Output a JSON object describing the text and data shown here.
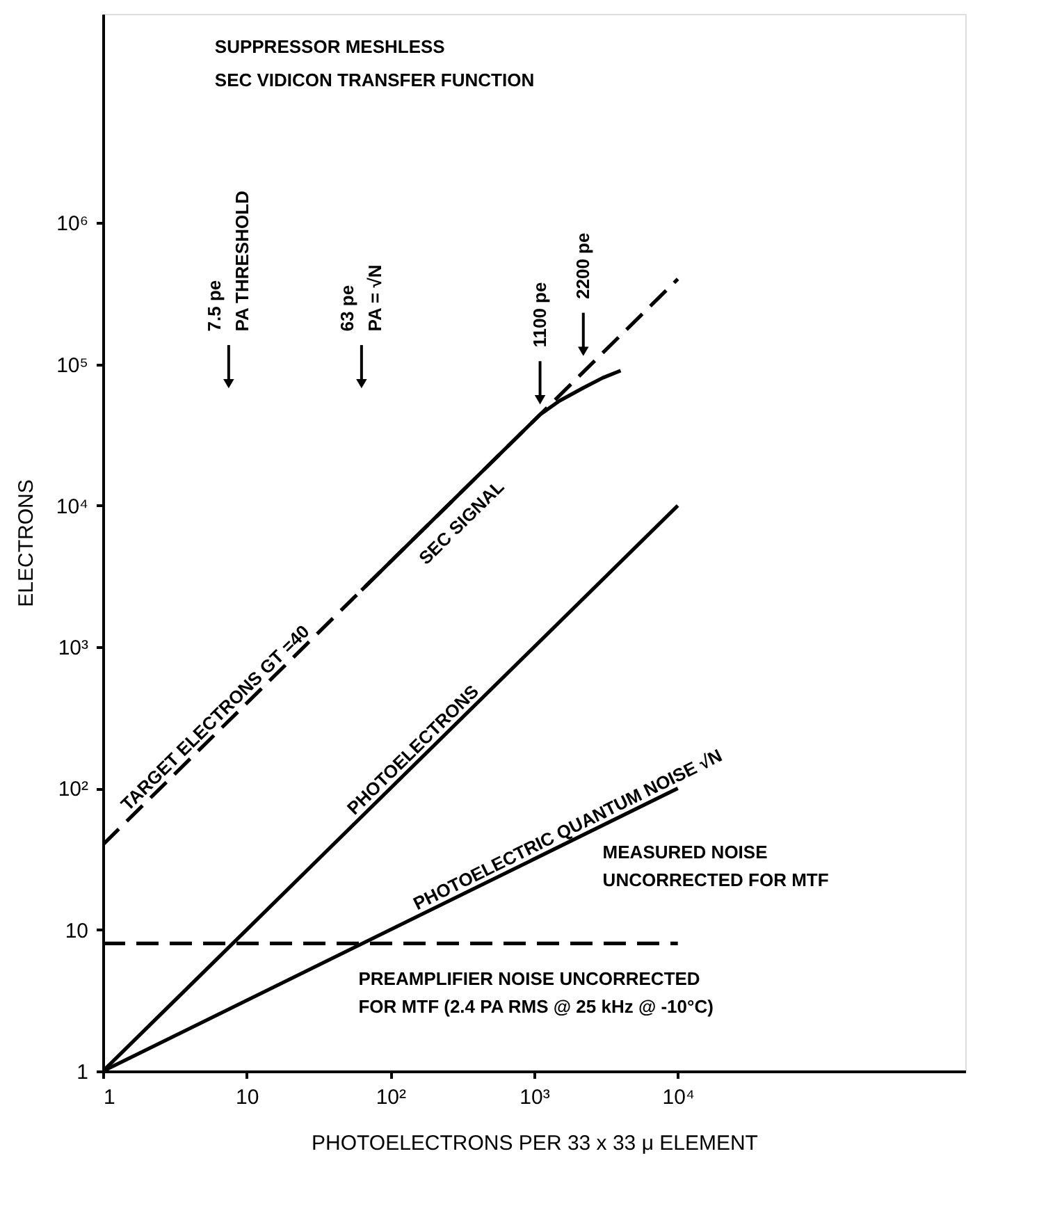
{
  "chart_data": {
    "type": "line",
    "title": "SUPPRESSOR MESHLESS",
    "subtitle": "SEC VIDICON TRANSFER FUNCTION",
    "xlabel": "PHOTOELECTRONS PER 33 x 33 μ ELEMENT",
    "ylabel": "ELECTRONS",
    "log": "xy",
    "xlim": [
      1,
      1000000
    ],
    "ylim": [
      1,
      30000000
    ],
    "xticks": [
      1,
      10,
      {
        "value": 100,
        "label": "10²"
      },
      {
        "value": 1000,
        "label": "10³"
      },
      {
        "value": 10000,
        "label": "10⁴"
      }
    ],
    "yticks": [
      1,
      10,
      {
        "value": 100,
        "label": "10²"
      },
      {
        "value": 1000,
        "label": "10³"
      },
      {
        "value": 10000,
        "label": "10⁴"
      },
      {
        "value": 100000,
        "label": "10⁵"
      },
      {
        "value": 1000000,
        "label": "10⁶"
      }
    ],
    "grid": false,
    "series": [
      {
        "name": "TARGET ELECTRONS GT =40",
        "color": "#000000",
        "line_style": "dashed",
        "x": [
          1,
          10000
        ],
        "values": [
          40,
          400000
        ]
      },
      {
        "name": "SEC SIGNAL",
        "color": "#000000",
        "line_style": "solid",
        "x": [
          63,
          800,
          1100,
          1500,
          2200,
          3000,
          4000
        ],
        "values": [
          2520,
          32000,
          44000,
          55000,
          68000,
          80000,
          90000
        ]
      },
      {
        "name": "PHOTOELECTRONS",
        "color": "#000000",
        "line_style": "solid",
        "x": [
          1,
          10000
        ],
        "values": [
          1,
          10000
        ]
      },
      {
        "name": "PHOTOELECTRIC QUANTUM NOISE √N",
        "color": "#000000",
        "line_style": "solid",
        "x": [
          1,
          10000
        ],
        "values": [
          1,
          100
        ]
      },
      {
        "name": "PREAMPLIFIER NOISE UNCORRECTED\nFOR MTF (2.4 PA RMS @ 25 kHz @ -10°C)",
        "color": "#000000",
        "line_style": "dashed",
        "x": [
          1,
          10000
        ],
        "values": [
          8,
          8
        ]
      }
    ],
    "annotations": [
      "7.5 pe\nPA THRESHOLD",
      "63 pe\nPA = √N",
      {
        "text": "1100 pe",
        "x": 1100,
        "y": 50000
      },
      "2200 pe",
      "MEASURED NOISE\nUNCORRECTED FOR MTF"
    ]
  }
}
